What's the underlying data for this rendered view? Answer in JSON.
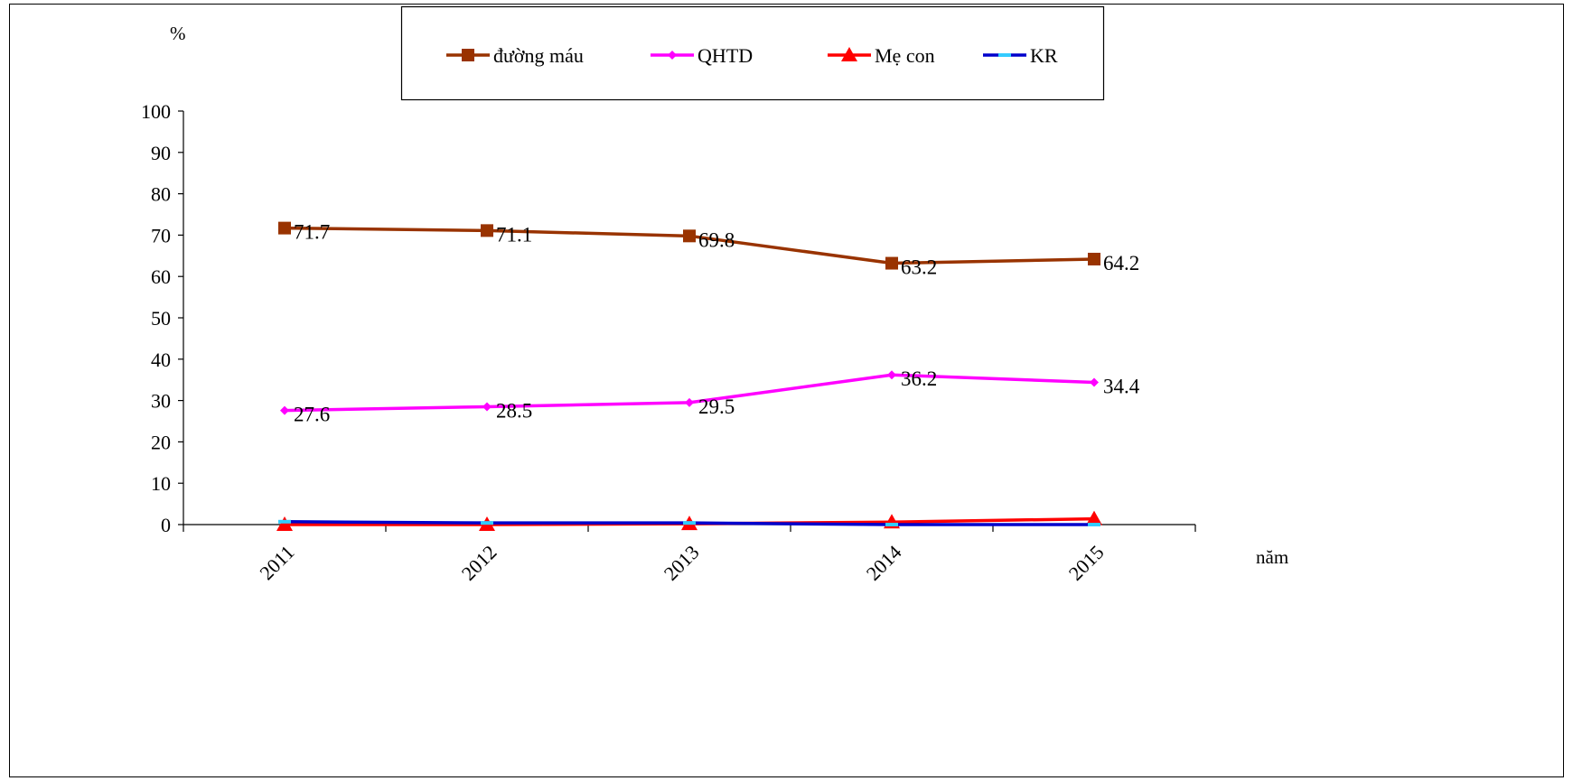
{
  "chart_data": {
    "type": "line",
    "title": "",
    "xlabel": "năm",
    "ylabel": "%",
    "categories": [
      "2011",
      "2012",
      "2013",
      "2014",
      "2015"
    ],
    "ylim": [
      0,
      100
    ],
    "yticks": [
      "0",
      "10",
      "20",
      "30",
      "40",
      "50",
      "60",
      "70",
      "80",
      "90",
      "100"
    ],
    "grid": false,
    "legend": "top",
    "series": [
      {
        "name": "đường máu",
        "values": [
          71.7,
          71.1,
          69.8,
          63.2,
          64.2
        ],
        "labels": [
          "71.7",
          "71.1",
          "69.8",
          "63.2",
          "64.2"
        ],
        "color": "#993300",
        "marker": "square"
      },
      {
        "name": "QHTD",
        "values": [
          27.6,
          28.5,
          29.5,
          36.2,
          34.4
        ],
        "labels": [
          "27.6",
          "28.5",
          "29.5",
          "36.2",
          "34.4"
        ],
        "color": "#FF00FF",
        "marker": "diamond"
      },
      {
        "name": "Mẹ con",
        "values": [
          0.0,
          0.0,
          0.2,
          0.6,
          1.4
        ],
        "color": "#FF0000",
        "marker": "triangle"
      },
      {
        "name": "KR",
        "values": [
          0.7,
          0.4,
          0.4,
          0.0,
          0.0
        ],
        "color": "#0000CC",
        "marker": "dash",
        "marker_color": "#33CCFF"
      }
    ]
  }
}
